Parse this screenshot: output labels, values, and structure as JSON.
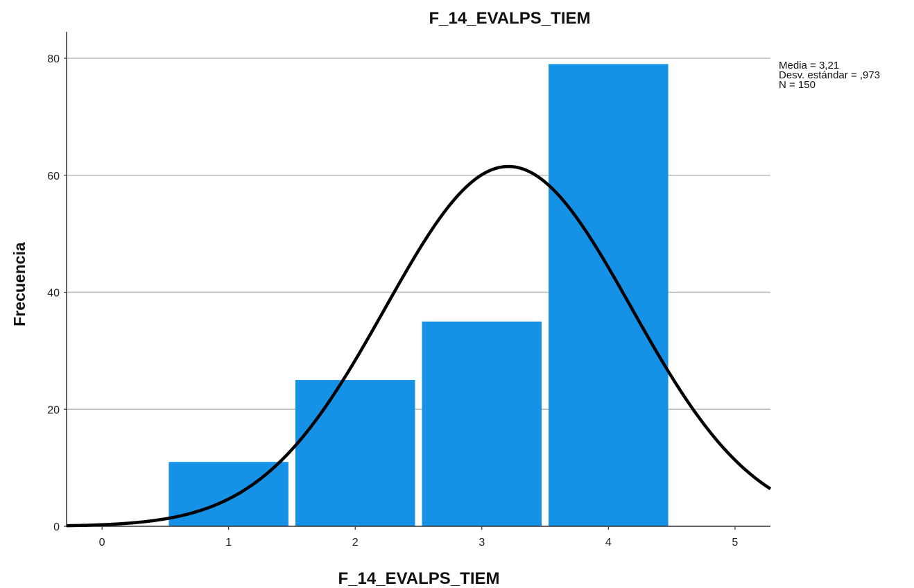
{
  "chart_data": {
    "type": "bar",
    "title": "F_14_EVALPS_TIEM",
    "xlabel": "F_14_EVALPS_TIEM",
    "ylabel": "Frecuencia",
    "categories": [
      "1",
      "2",
      "3",
      "4"
    ],
    "x": [
      1,
      2,
      3,
      4
    ],
    "values": [
      11,
      25,
      35,
      79
    ],
    "xticks": [
      "0",
      "1",
      "2",
      "3",
      "4",
      "5"
    ],
    "yticks": [
      "0",
      "20",
      "40",
      "60",
      "80"
    ],
    "xlim": [
      -0.28,
      5.28
    ],
    "ylim": [
      0,
      84
    ],
    "grid": "horizontal",
    "bar_color": "#1591E6",
    "curve_color": "#000000",
    "normal_curve": {
      "mean": 3.21,
      "std": 0.973,
      "n": 150,
      "bin_width": 1
    },
    "stats": {
      "media": "Media = 3,21",
      "desv": "Desv. estándar = ,973",
      "n": "N = 150"
    }
  }
}
